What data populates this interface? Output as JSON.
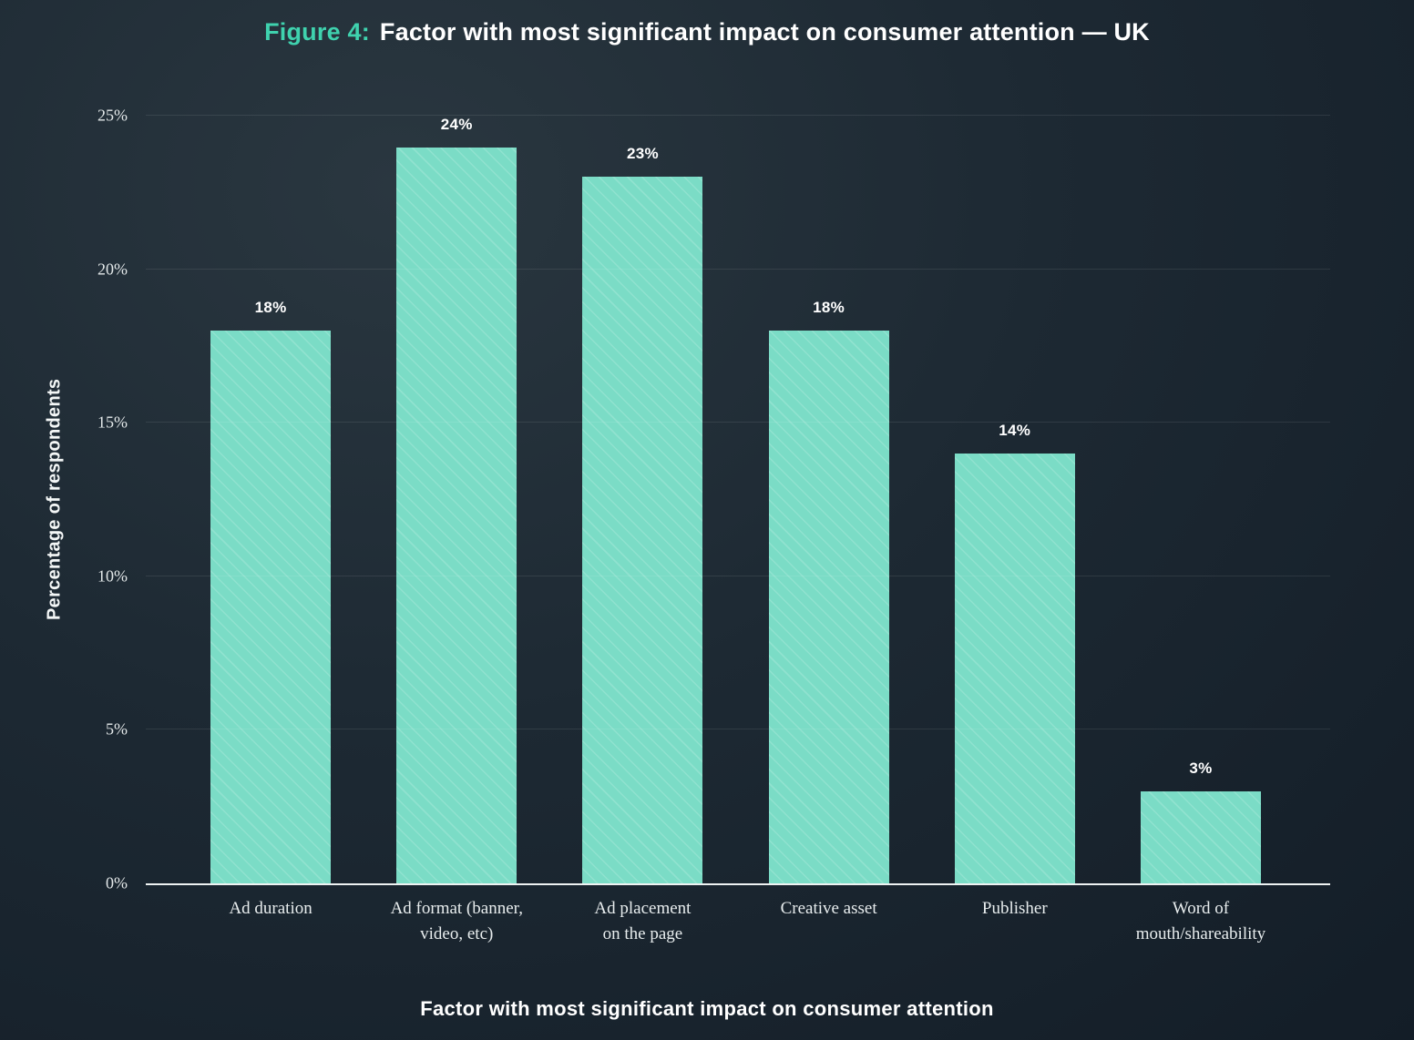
{
  "title": {
    "prefix": "Figure 4:",
    "main": "Factor with most significant impact on consumer attention — UK"
  },
  "chart_data": {
    "type": "bar",
    "title": "Figure 4: Factor with most significant impact on consumer attention — UK",
    "categories": [
      "Ad duration",
      "Ad format (banner, video, etc)",
      "Ad placement on the page",
      "Creative asset",
      "Publisher",
      "Word of mouth/shareability"
    ],
    "category_lines": [
      [
        "Ad duration"
      ],
      [
        "Ad format (banner,",
        "video, etc)"
      ],
      [
        "Ad placement",
        "on the page"
      ],
      [
        "Creative asset"
      ],
      [
        "Publisher"
      ],
      [
        "Word of",
        "mouth/shareability"
      ]
    ],
    "values": [
      18,
      24,
      23,
      18,
      14,
      3
    ],
    "value_labels": [
      "18%",
      "24%",
      "23%",
      "18%",
      "14%",
      "3%"
    ],
    "xlabel": "Factor with most significant impact on consumer attention",
    "ylabel": "Percentage of respondents",
    "ylim": [
      0,
      25
    ],
    "yticks": [
      0,
      5,
      10,
      15,
      20,
      25
    ],
    "ytick_labels": [
      "0%",
      "5%",
      "10%",
      "15%",
      "20%",
      "25%"
    ],
    "grid": true,
    "legend": "none",
    "bar_color": "#7bdcc6",
    "accent_color": "#3fd2ae",
    "background_color": "#1d2933"
  }
}
